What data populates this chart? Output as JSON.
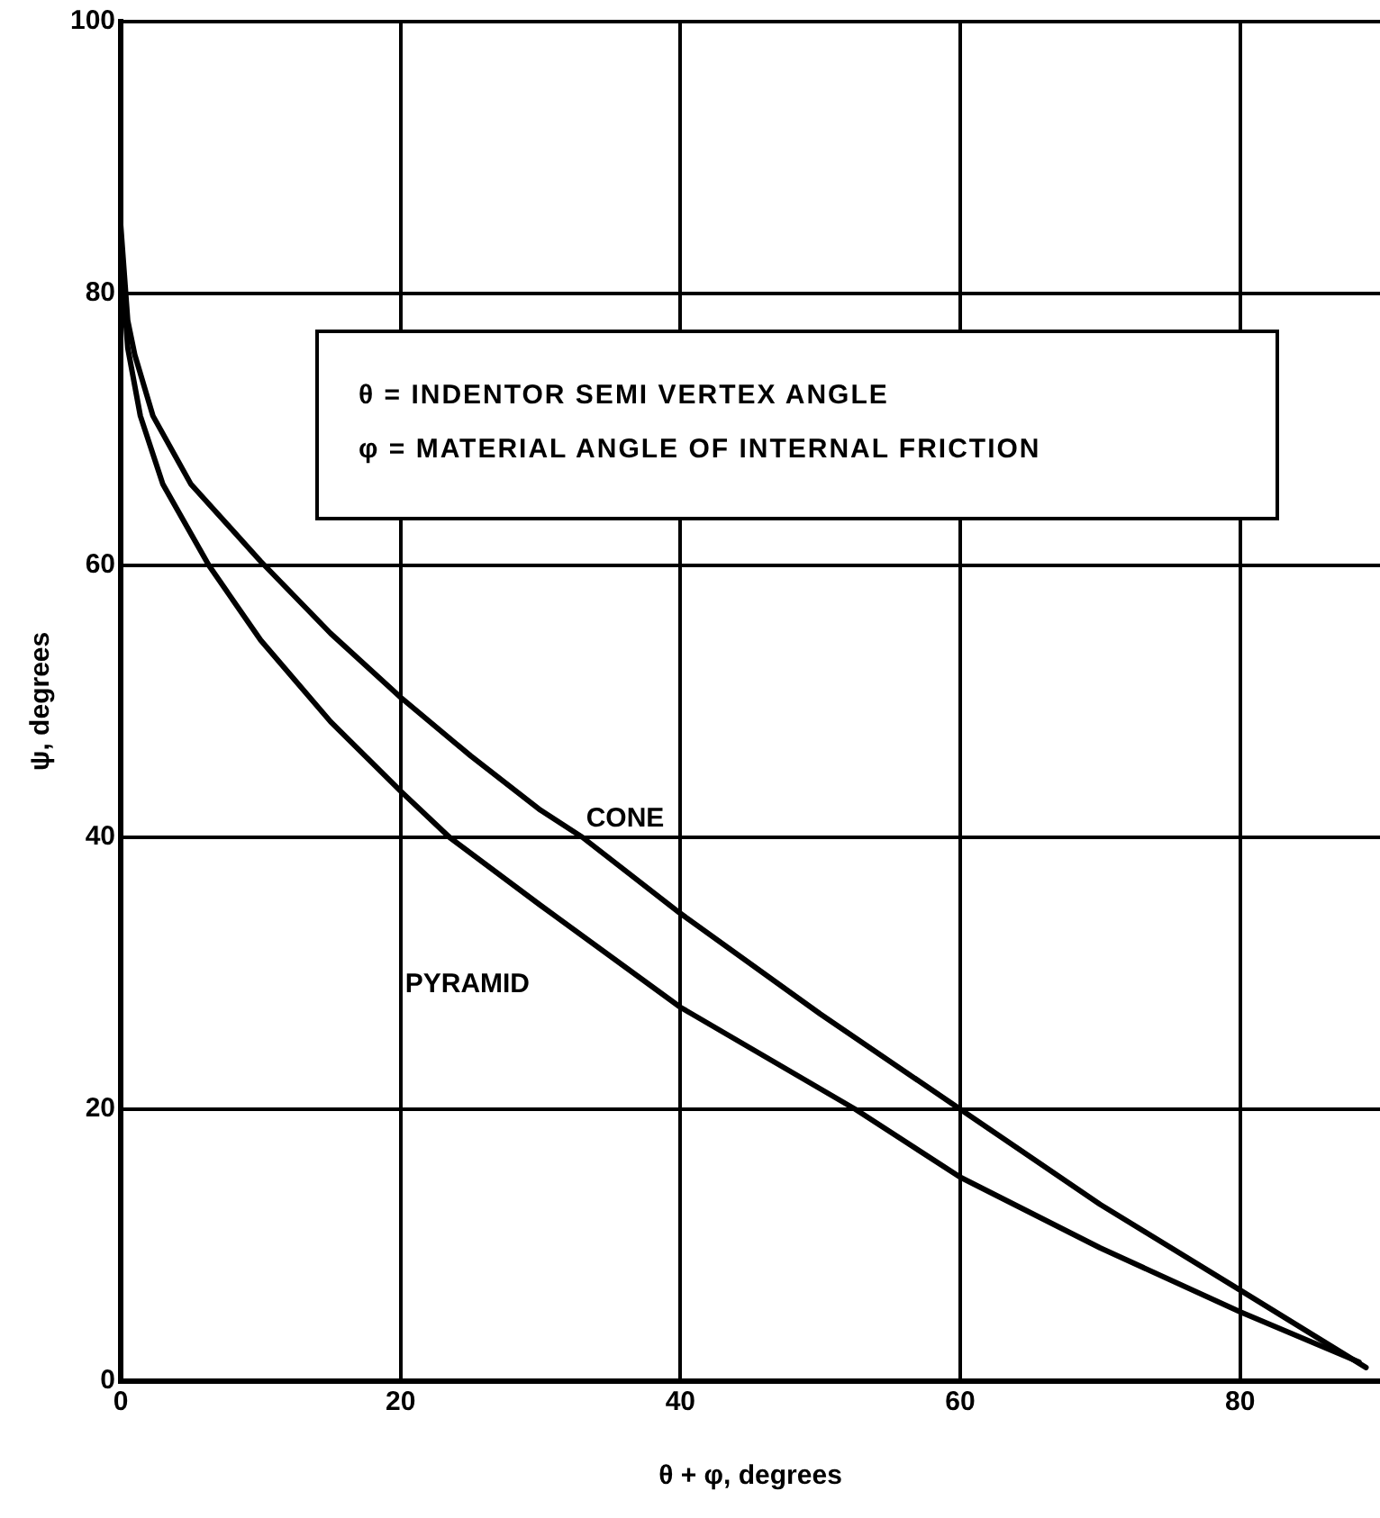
{
  "chart_data": {
    "type": "line",
    "xlabel": "θ + φ, degrees",
    "ylabel": "ψ, degrees",
    "annotations": [
      "θ = INDENTOR SEMI VERTEX ANGLE",
      "φ = MATERIAL ANGLE OF INTERNAL FRICTION"
    ],
    "xlim": [
      0,
      90
    ],
    "xticks": [
      0,
      20,
      40,
      60,
      80
    ],
    "ylim": [
      0,
      100
    ],
    "yticks": [
      0,
      20,
      40,
      60,
      80,
      100
    ],
    "grid": true,
    "legend": false,
    "marker": "none",
    "line_style": "solid",
    "series": [
      {
        "name": "CONE",
        "color": "#000000",
        "x": [
          0,
          0.5,
          1,
          2.3,
          5,
          10,
          15,
          20,
          25,
          30,
          33,
          40,
          50,
          60,
          70,
          80,
          89
        ],
        "values": [
          85,
          78,
          75.5,
          71,
          66,
          60.3,
          55,
          50.3,
          46,
          42,
          40,
          34.4,
          27,
          20,
          13,
          6.7,
          1
        ]
      },
      {
        "name": "PYRAMID",
        "color": "#000000",
        "x": [
          0.2,
          0.5,
          1.4,
          3,
          6.3,
          10,
          15,
          20,
          23.5,
          30,
          40,
          52.5,
          60,
          70,
          80,
          88.5
        ],
        "values": [
          80,
          76,
          71,
          66,
          60,
          54.5,
          48.5,
          43.4,
          40,
          35,
          27.5,
          20,
          15,
          9.8,
          5.1,
          1.4
        ]
      }
    ]
  }
}
